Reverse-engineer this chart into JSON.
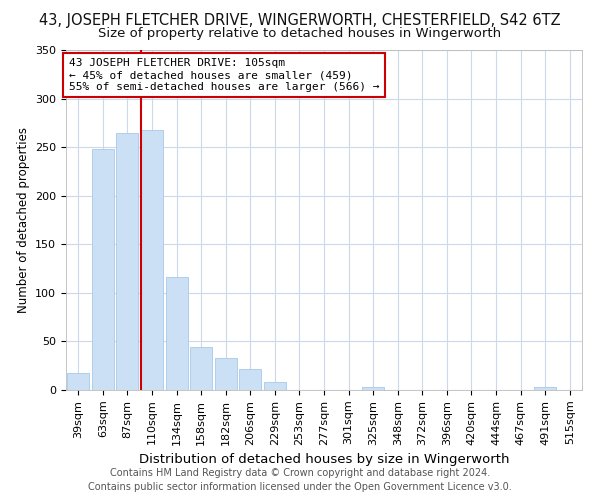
{
  "title": "43, JOSEPH FLETCHER DRIVE, WINGERWORTH, CHESTERFIELD, S42 6TZ",
  "subtitle": "Size of property relative to detached houses in Wingerworth",
  "xlabel": "Distribution of detached houses by size in Wingerworth",
  "ylabel": "Number of detached properties",
  "categories": [
    "39sqm",
    "63sqm",
    "87sqm",
    "110sqm",
    "134sqm",
    "158sqm",
    "182sqm",
    "206sqm",
    "229sqm",
    "253sqm",
    "277sqm",
    "301sqm",
    "325sqm",
    "348sqm",
    "372sqm",
    "396sqm",
    "420sqm",
    "444sqm",
    "467sqm",
    "491sqm",
    "515sqm"
  ],
  "values": [
    17,
    248,
    265,
    268,
    116,
    44,
    33,
    22,
    8,
    0,
    0,
    0,
    3,
    0,
    0,
    0,
    0,
    0,
    0,
    3,
    0
  ],
  "bar_color": "#cce0f5",
  "bar_edge_color": "#a8c8e8",
  "red_line_x": 3,
  "annotation_line1": "43 JOSEPH FLETCHER DRIVE: 105sqm",
  "annotation_line2": "← 45% of detached houses are smaller (459)",
  "annotation_line3": "55% of semi-detached houses are larger (566) →",
  "annotation_box_color": "#cc0000",
  "annotation_bg_color": "#ffffff",
  "footer_line1": "Contains HM Land Registry data © Crown copyright and database right 2024.",
  "footer_line2": "Contains public sector information licensed under the Open Government Licence v3.0.",
  "ylim": [
    0,
    350
  ],
  "yticks": [
    0,
    50,
    100,
    150,
    200,
    250,
    300,
    350
  ],
  "title_fontsize": 10.5,
  "subtitle_fontsize": 9.5,
  "xlabel_fontsize": 9.5,
  "ylabel_fontsize": 8.5,
  "tick_fontsize": 8,
  "annotation_fontsize": 8,
  "footer_fontsize": 7,
  "bg_color": "#ffffff",
  "grid_color": "#ccd8ec"
}
